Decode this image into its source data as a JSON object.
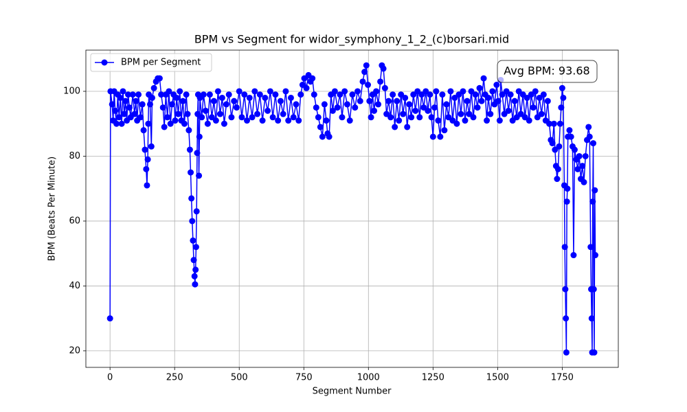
{
  "chart_data": {
    "type": "line",
    "title": "BPM vs Segment for widor_symphony_1_2_(c)borsari.mid",
    "x_label": "Segment Number",
    "y_label": "BPM (Beats Per Minute)",
    "annotation": "Avg BPM: 93.68",
    "legend": "upper left",
    "grid": true,
    "xlim": [
      -93.5,
      1967
    ],
    "ylim": [
      14.9,
      112.7
    ],
    "xticks": [
      0,
      250,
      500,
      750,
      1000,
      1250,
      1500,
      1750
    ],
    "yticks": [
      20,
      40,
      60,
      80,
      100
    ],
    "x": [
      0,
      2,
      8,
      12,
      16,
      20,
      25,
      30,
      35,
      40,
      45,
      50,
      55,
      60,
      65,
      70,
      75,
      80,
      88,
      95,
      100,
      105,
      110,
      118,
      125,
      130,
      135,
      140,
      143,
      146,
      148,
      150,
      155,
      160,
      163,
      170,
      178,
      185,
      192,
      198,
      205,
      210,
      216,
      222,
      228,
      234,
      240,
      246,
      252,
      258,
      264,
      270,
      276,
      282,
      288,
      295,
      300,
      305,
      309,
      312,
      315,
      318,
      321,
      324,
      327,
      329,
      331,
      333,
      335,
      337,
      339,
      341,
      344,
      346,
      348,
      355,
      362,
      370,
      378,
      386,
      394,
      402,
      410,
      418,
      426,
      434,
      442,
      450,
      460,
      470,
      480,
      490,
      500,
      510,
      520,
      530,
      540,
      550,
      560,
      570,
      580,
      590,
      600,
      610,
      620,
      630,
      640,
      650,
      660,
      670,
      680,
      690,
      700,
      710,
      720,
      730,
      738,
      745,
      752,
      760,
      768,
      776,
      783,
      790,
      798,
      806,
      814,
      822,
      830,
      837,
      842,
      848,
      855,
      862,
      870,
      880,
      890,
      898,
      908,
      918,
      928,
      938,
      948,
      958,
      968,
      978,
      985,
      992,
      998,
      1004,
      1010,
      1016,
      1022,
      1030,
      1038,
      1046,
      1052,
      1058,
      1064,
      1070,
      1078,
      1086,
      1094,
      1102,
      1110,
      1118,
      1126,
      1134,
      1142,
      1150,
      1158,
      1166,
      1174,
      1182,
      1190,
      1198,
      1206,
      1214,
      1222,
      1230,
      1238,
      1244,
      1250,
      1256,
      1262,
      1270,
      1278,
      1286,
      1294,
      1302,
      1310,
      1318,
      1326,
      1334,
      1342,
      1350,
      1358,
      1366,
      1374,
      1382,
      1390,
      1398,
      1406,
      1414,
      1422,
      1430,
      1438,
      1446,
      1452,
      1458,
      1464,
      1472,
      1480,
      1488,
      1496,
      1502,
      1508,
      1512,
      1518,
      1526,
      1534,
      1542,
      1550,
      1558,
      1566,
      1574,
      1582,
      1590,
      1598,
      1606,
      1614,
      1622,
      1630,
      1638,
      1646,
      1654,
      1662,
      1670,
      1678,
      1686,
      1694,
      1700,
      1706,
      1712,
      1718,
      1722,
      1726,
      1730,
      1734,
      1738,
      1742,
      1746,
      1750,
      1754,
      1758,
      1760,
      1762,
      1764,
      1766,
      1768,
      1770,
      1772,
      1778,
      1784,
      1790,
      1794,
      1798,
      1804,
      1810,
      1816,
      1822,
      1828,
      1834,
      1840,
      1846,
      1852,
      1856,
      1860,
      1862,
      1864,
      1866,
      1868,
      1870,
      1872,
      1874,
      1876,
      1878
    ],
    "series": [
      {
        "name": "BPM per Segment",
        "color": "#0000ff",
        "values": [
          30,
          100,
          96,
          91,
          100,
          94,
          90,
          99,
          92,
          98,
          90,
          100,
          93,
          97,
          91,
          99,
          95,
          92,
          99,
          93,
          97,
          91,
          99,
          92,
          96,
          88,
          82,
          76,
          71,
          79,
          90,
          99,
          96,
          83,
          98,
          101,
          103,
          104,
          104,
          99,
          95,
          89,
          99,
          92,
          100,
          90,
          96,
          99,
          91,
          98,
          93,
          100,
          91,
          97,
          90,
          99,
          93,
          88,
          82,
          75,
          67,
          60,
          54,
          48,
          43,
          40.5,
          45,
          52,
          63,
          81,
          93,
          99,
          74,
          86,
          98,
          92,
          99,
          94,
          90,
          99,
          92,
          97,
          91,
          100,
          93,
          98,
          90,
          96,
          99,
          92,
          97,
          95,
          100,
          92,
          99,
          91,
          98,
          92,
          100,
          93,
          99,
          91,
          98,
          94,
          100,
          92,
          99,
          91,
          97,
          93,
          100,
          91,
          98,
          92,
          96,
          91,
          99,
          102,
          104,
          101,
          105,
          103,
          104,
          99,
          95,
          92,
          89,
          86,
          96,
          91,
          87,
          86,
          99,
          94,
          100,
          95,
          99,
          92,
          100,
          96,
          91,
          99,
          95,
          100,
          97,
          103,
          106,
          108,
          102,
          97,
          92,
          99,
          94,
          100,
          96,
          103,
          108,
          107,
          101,
          93,
          97,
          92,
          99,
          89,
          97,
          91,
          99,
          93,
          98,
          89,
          96,
          92,
          99,
          94,
          100,
          92,
          99,
          95,
          100,
          94,
          99,
          92,
          86,
          95,
          100,
          91,
          86,
          99,
          88,
          96,
          92,
          100,
          91,
          98,
          90,
          99,
          93,
          100,
          91,
          97,
          93,
          100,
          92,
          99,
          95,
          101,
          97,
          104,
          99,
          91,
          98,
          93,
          100,
          96,
          102,
          97,
          91,
          103.5,
          99,
          93,
          100,
          94,
          99,
          91,
          97,
          92,
          100,
          93,
          99,
          92,
          98,
          91,
          99,
          95,
          100,
          92,
          98,
          93,
          99,
          91,
          97,
          90,
          85,
          84,
          90,
          82,
          77,
          73,
          76,
          83,
          90,
          95,
          101,
          98,
          71,
          52,
          39,
          30,
          19.5,
          66,
          70,
          86,
          88,
          86,
          83,
          49.5,
          82,
          79,
          76,
          80,
          73,
          77,
          72,
          80,
          85,
          89,
          86,
          52,
          39,
          30,
          19.5,
          66,
          84,
          39,
          19.5,
          69.5,
          49.5
        ]
      }
    ]
  }
}
